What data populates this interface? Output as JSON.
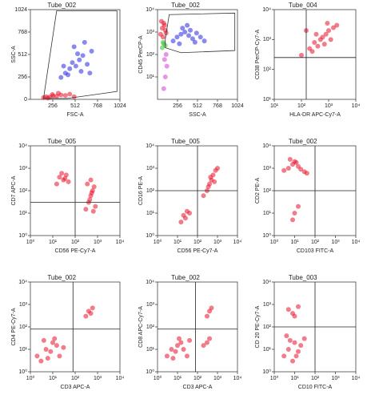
{
  "chart_data": [
    {
      "type": "scatter",
      "title": "Tube_002",
      "x_label": "FSC-A",
      "y_label": "SSC-A",
      "xscale": "linear",
      "yscale": "linear",
      "xlim": [
        0,
        1024
      ],
      "ylim": [
        0,
        1024
      ],
      "xticks": [
        256,
        512,
        768,
        1024
      ],
      "yticks": [
        0,
        256,
        512,
        768,
        1024
      ],
      "gate": {
        "x": [
          150,
          300,
          990,
          990,
          420
        ],
        "y": [
          10,
          1010,
          1010,
          90,
          10
        ]
      },
      "series": [
        {
          "color": "#e8102a",
          "x": [
            150,
            180,
            220,
            260,
            300,
            350,
            400,
            450,
            200,
            250,
            320,
            500
          ],
          "values": [
            20,
            30,
            25,
            40,
            35,
            50,
            45,
            60,
            15,
            55,
            70,
            30
          ]
        },
        {
          "color": "#2a2ae0",
          "x": [
            350,
            400,
            450,
            480,
            520,
            560,
            600,
            650,
            700,
            430,
            500,
            580,
            620,
            380,
            540,
            680
          ],
          "values": [
            250,
            300,
            350,
            420,
            380,
            450,
            500,
            400,
            550,
            280,
            600,
            320,
            650,
            380,
            520,
            300
          ]
        }
      ]
    },
    {
      "type": "scatter",
      "title": "Tube_002",
      "x_label": "SSC-A",
      "y_label": "CD45 PerCP-A",
      "xscale": "linear",
      "yscale": "log",
      "xlim": [
        0,
        1024
      ],
      "ylim": [
        1,
        10000
      ],
      "xticks": [
        256,
        512,
        768,
        1024
      ],
      "yticks": [
        {
          "value": 10,
          "label": "10¹"
        },
        {
          "value": 100,
          "label": "10²"
        },
        {
          "value": 1000,
          "label": "10³"
        },
        {
          "value": 10000,
          "label": "10⁴"
        }
      ],
      "gate": {
        "x": [
          100,
          150,
          990,
          990,
          300,
          100
        ],
        "y": [
          500,
          6000,
          7000,
          150,
          120,
          200
        ]
      },
      "series": [
        {
          "color": "#e8102a",
          "x": [
            40,
            60,
            80,
            100,
            50,
            70,
            90,
            110
          ],
          "values": [
            800,
            1500,
            2500,
            1200,
            3000,
            600,
            2000,
            900
          ]
        },
        {
          "color": "#3cbf3c",
          "x": [
            60,
            80,
            100,
            70
          ],
          "values": [
            200,
            300,
            250,
            350
          ]
        },
        {
          "color": "#d040d0",
          "x": [
            80,
            100,
            120,
            90,
            110
          ],
          "values": [
            3,
            10,
            30,
            60,
            100
          ]
        },
        {
          "color": "#2a2ae0",
          "x": [
            200,
            250,
            300,
            350,
            400,
            450,
            500,
            550,
            600,
            320,
            420,
            280,
            480,
            380
          ],
          "values": [
            400,
            600,
            800,
            1000,
            700,
            500,
            900,
            600,
            400,
            1500,
            1200,
            300,
            350,
            2000
          ]
        }
      ]
    },
    {
      "type": "scatter",
      "title": "Tube_004",
      "x_label": "HLA-DR APC-Cy7-A",
      "y_label": "CD38 PerCP-Cy7-A",
      "xscale": "log",
      "yscale": "log",
      "xlim": [
        10,
        10000
      ],
      "ylim": [
        10,
        10000
      ],
      "xticks": [
        {
          "value": 10,
          "label": "10¹"
        },
        {
          "value": 100,
          "label": "10²"
        },
        {
          "value": 1000,
          "label": "10³"
        },
        {
          "value": 10000,
          "label": "10⁴"
        }
      ],
      "yticks": [
        {
          "value": 10,
          "label": "10¹"
        },
        {
          "value": 100,
          "label": "10²"
        },
        {
          "value": 1000,
          "label": "10³"
        },
        {
          "value": 10000,
          "label": "10⁴"
        }
      ],
      "quadrant": {
        "x": 150,
        "y": 250
      },
      "series": [
        {
          "color": "#e8102a",
          "x": [
            100,
            200,
            300,
            500,
            800,
            1000,
            1500,
            2000,
            400,
            600,
            700,
            250,
            150,
            1200,
            350,
            900
          ],
          "values": [
            300,
            500,
            800,
            1000,
            1500,
            2000,
            2500,
            3000,
            600,
            1200,
            700,
            400,
            2000,
            1000,
            1500,
            3500
          ]
        }
      ]
    },
    {
      "type": "scatter",
      "title": "Tube_005",
      "x_label": "CD56 PE-Cy7-A",
      "y_label": "CD7 APC-A",
      "xscale": "log",
      "yscale": "log",
      "xlim": [
        1,
        10000
      ],
      "ylim": [
        1,
        10000
      ],
      "xticks": [
        {
          "value": 1,
          "label": "10⁰"
        },
        {
          "value": 10,
          "label": "10¹"
        },
        {
          "value": 100,
          "label": "10²"
        },
        {
          "value": 1000,
          "label": "10³"
        },
        {
          "value": 10000,
          "label": "10⁴"
        }
      ],
      "yticks": [
        {
          "value": 1,
          "label": "10⁰"
        },
        {
          "value": 10,
          "label": "10¹"
        },
        {
          "value": 100,
          "label": "10²"
        },
        {
          "value": 1000,
          "label": "10³"
        },
        {
          "value": 10000,
          "label": "10⁴"
        }
      ],
      "quadrant": {
        "x": 100,
        "y": 30
      },
      "series": [
        {
          "color": "#e8102a",
          "x": [
            15,
            20,
            30,
            40,
            50,
            25,
            35,
            300,
            400,
            500,
            600,
            700,
            800,
            350,
            450,
            550,
            650,
            500
          ],
          "values": [
            200,
            400,
            300,
            500,
            250,
            600,
            350,
            15,
            30,
            60,
            100,
            150,
            20,
            200,
            40,
            80,
            12,
            300
          ]
        }
      ]
    },
    {
      "type": "scatter",
      "title": "Tube_005",
      "x_label": "CD56 PE-Cy7-A",
      "y_label": "CD16 PE-A",
      "xscale": "log",
      "yscale": "log",
      "xlim": [
        1,
        10000
      ],
      "ylim": [
        1,
        10000
      ],
      "xticks": [
        {
          "value": 1,
          "label": "10⁰"
        },
        {
          "value": 10,
          "label": "10¹"
        },
        {
          "value": 100,
          "label": "10²"
        },
        {
          "value": 1000,
          "label": "10³"
        },
        {
          "value": 10000,
          "label": "10⁴"
        }
      ],
      "yticks": [
        {
          "value": 1,
          "label": "10⁰"
        },
        {
          "value": 10,
          "label": "10¹"
        },
        {
          "value": 100,
          "label": "10²"
        },
        {
          "value": 1000,
          "label": "10³"
        },
        {
          "value": 10000,
          "label": "10⁴"
        }
      ],
      "quadrant": {
        "x": 100,
        "y": 100
      },
      "series": [
        {
          "color": "#e8102a",
          "x": [
            200,
            300,
            400,
            500,
            600,
            800,
            1000,
            350,
            450,
            700,
            15,
            20,
            30,
            25,
            40
          ],
          "values": [
            60,
            100,
            200,
            300,
            500,
            800,
            1000,
            150,
            400,
            250,
            4,
            8,
            12,
            6,
            10
          ]
        }
      ]
    },
    {
      "type": "scatter",
      "title": "Tube_002",
      "x_label": "CD103 FITC-A",
      "y_label": "CD2 PE-A",
      "xscale": "log",
      "yscale": "log",
      "xlim": [
        1,
        10000
      ],
      "ylim": [
        1,
        10000
      ],
      "xticks": [
        {
          "value": 1,
          "label": "10⁰"
        },
        {
          "value": 10,
          "label": "10¹"
        },
        {
          "value": 100,
          "label": "10²"
        },
        {
          "value": 1000,
          "label": "10³"
        },
        {
          "value": 10000,
          "label": "10⁴"
        }
      ],
      "yticks": [
        {
          "value": 1,
          "label": "10⁰"
        },
        {
          "value": 10,
          "label": "10¹"
        },
        {
          "value": 100,
          "label": "10²"
        },
        {
          "value": 1000,
          "label": "10³"
        },
        {
          "value": 10000,
          "label": "10⁴"
        }
      ],
      "quadrant": {
        "x": 100,
        "y": 100
      },
      "series": [
        {
          "color": "#e8102a",
          "x": [
            3,
            5,
            8,
            10,
            15,
            20,
            30,
            40,
            6,
            12,
            8,
            10,
            15
          ],
          "values": [
            800,
            1000,
            1500,
            2000,
            1200,
            900,
            700,
            600,
            2500,
            1800,
            5,
            10,
            20
          ]
        }
      ]
    },
    {
      "type": "scatter",
      "title": "Tube_002",
      "x_label": "CD3 APC-A",
      "y_label": "CD4 PE-Cy7-A",
      "xscale": "log",
      "yscale": "log",
      "xlim": [
        1,
        10000
      ],
      "ylim": [
        1,
        10000
      ],
      "xticks": [
        {
          "value": 1,
          "label": "10⁰"
        },
        {
          "value": 10,
          "label": "10¹"
        },
        {
          "value": 100,
          "label": "10²"
        },
        {
          "value": 1000,
          "label": "10³"
        },
        {
          "value": 10000,
          "label": "10⁴"
        }
      ],
      "yticks": [
        {
          "value": 1,
          "label": "10⁰"
        },
        {
          "value": 10,
          "label": "10¹"
        },
        {
          "value": 100,
          "label": "10²"
        },
        {
          "value": 1000,
          "label": "10³"
        },
        {
          "value": 10000,
          "label": "10⁴"
        }
      ],
      "quadrant": {
        "x": 80,
        "y": 80
      },
      "series": [
        {
          "color": "#e8102a",
          "x": [
            2,
            3,
            5,
            8,
            10,
            15,
            20,
            30,
            4,
            6,
            12,
            300,
            400,
            500,
            600
          ],
          "values": [
            5,
            3,
            10,
            8,
            20,
            15,
            5,
            12,
            25,
            4,
            30,
            300,
            500,
            400,
            700
          ]
        }
      ]
    },
    {
      "type": "scatter",
      "title": "Tube_002",
      "x_label": "CD3 APC-A",
      "y_label": "CD8 APC-Cy7-A",
      "xscale": "log",
      "yscale": "log",
      "xlim": [
        1,
        10000
      ],
      "ylim": [
        1,
        10000
      ],
      "xticks": [
        {
          "value": 1,
          "label": "10⁰"
        },
        {
          "value": 10,
          "label": "10¹"
        },
        {
          "value": 100,
          "label": "10²"
        },
        {
          "value": 1000,
          "label": "10³"
        },
        {
          "value": 10000,
          "label": "10⁴"
        }
      ],
      "yticks": [
        {
          "value": 1,
          "label": "10⁰"
        },
        {
          "value": 10,
          "label": "10¹"
        },
        {
          "value": 100,
          "label": "10²"
        },
        {
          "value": 1000,
          "label": "10³"
        },
        {
          "value": 10000,
          "label": "10⁴"
        }
      ],
      "quadrant": {
        "x": 80,
        "y": 80
      },
      "series": [
        {
          "color": "#e8102a",
          "x": [
            3,
            5,
            8,
            10,
            15,
            20,
            30,
            40,
            6,
            12,
            300,
            400,
            500,
            200,
            300,
            400
          ],
          "values": [
            5,
            10,
            8,
            15,
            20,
            10,
            5,
            25,
            4,
            30,
            300,
            500,
            700,
            15,
            20,
            30
          ]
        }
      ]
    },
    {
      "type": "scatter",
      "title": "Tube_003",
      "x_label": "CD10 FITC-A",
      "y_label": "CD 20 PE-Cy7-A",
      "xscale": "log",
      "yscale": "log",
      "xlim": [
        1,
        10000
      ],
      "ylim": [
        1,
        10000
      ],
      "xticks": [
        {
          "value": 1,
          "label": "10⁰"
        },
        {
          "value": 10,
          "label": "10¹"
        },
        {
          "value": 100,
          "label": "10²"
        },
        {
          "value": 1000,
          "label": "10³"
        },
        {
          "value": 10000,
          "label": "10⁴"
        }
      ],
      "yticks": [
        {
          "value": 1,
          "label": "10⁰"
        },
        {
          "value": 10,
          "label": "10¹"
        },
        {
          "value": 100,
          "label": "10²"
        },
        {
          "value": 1000,
          "label": "10³"
        },
        {
          "value": 10000,
          "label": "10⁴"
        }
      ],
      "quadrant": {
        "x": 100,
        "y": 100
      },
      "series": [
        {
          "color": "#e8102a",
          "x": [
            3,
            5,
            8,
            10,
            15,
            20,
            30,
            4,
            6,
            12,
            8,
            5,
            10,
            15
          ],
          "values": [
            5,
            10,
            3,
            20,
            8,
            15,
            30,
            40,
            25,
            5,
            400,
            600,
            300,
            800
          ]
        }
      ]
    }
  ]
}
